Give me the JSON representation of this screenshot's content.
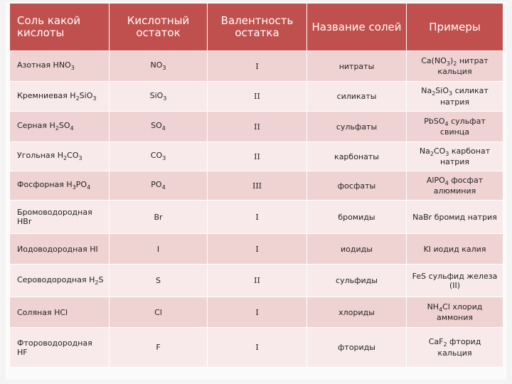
{
  "headers": [
    "Соль какой кислоты",
    "Кислотный остаток",
    "Валентность остатка",
    "Название солей",
    "Примеры"
  ],
  "rows": [
    {
      "acid_html": "Азотная HNO<sub>3</sub>",
      "residue_html": "NO<sub>3</sub>",
      "valence": "I",
      "salt": "нитраты",
      "example_html": "Ca(NO<sub>3</sub>)<sub>2</sub> нитрат кальция"
    },
    {
      "acid_html": "Кремниевая H<sub>2</sub>SiO<sub>3</sub>",
      "residue_html": "SiO<sub>3</sub>",
      "valence": "II",
      "salt": "силикаты",
      "example_html": "Na<sub>2</sub>SiO<sub>3</sub> силикат натрия"
    },
    {
      "acid_html": "Серная H<sub>2</sub>SO<sub>4</sub>",
      "residue_html": "SO<sub>4</sub>",
      "valence": "II",
      "salt": "сульфаты",
      "example_html": "PbSO<sub>4</sub> сульфат свинца"
    },
    {
      "acid_html": "Угольная H<sub>2</sub>CO<sub>3</sub>",
      "residue_html": "CO<sub>3</sub>",
      "valence": "II",
      "salt": "карбонаты",
      "example_html": "Na<sub>2</sub>CO<sub>3</sub> карбонат натрия"
    },
    {
      "acid_html": "Фосфорная H<sub>3</sub>PO<sub>4</sub>",
      "residue_html": "PO<sub>4</sub>",
      "valence": "III",
      "salt": "фосфаты",
      "example_html": "AlPO<sub>4</sub> фосфат алюминия"
    },
    {
      "acid_html": "Бромоводородная HBr",
      "residue_html": "Br",
      "valence": "I",
      "salt": "бромиды",
      "example_html": "NaBr бромид натрия"
    },
    {
      "acid_html": "Иодоводородная HI",
      "residue_html": "I",
      "valence": "I",
      "salt": "иодиды",
      "example_html": "KI иодид калия"
    },
    {
      "acid_html": "Сероводородная H<sub>2</sub>S",
      "residue_html": "S",
      "valence": "II",
      "salt": "сульфиды",
      "example_html": "FeS сульфид железа (II)"
    },
    {
      "acid_html": "Соляная HCl",
      "residue_html": "Cl",
      "valence": "I",
      "salt": "хлориды",
      "example_html": "NH<sub>4</sub>Cl хлорид аммония"
    },
    {
      "acid_html": "Фтороводородная HF",
      "residue_html": "F",
      "valence": "I",
      "salt": "фториды",
      "example_html": "CaF<sub>2</sub> фторид кальция"
    }
  ]
}
